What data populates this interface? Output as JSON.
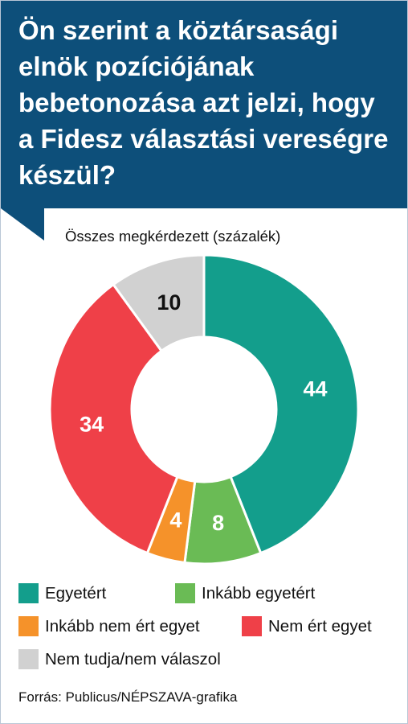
{
  "chart_data": {
    "type": "pie",
    "title": "Ön szerint a köztársasági elnök pozíciójának bebetonozása azt jelzi, hogy a Fidesz választási vereségre készül?",
    "subtitle": "Összes megkérdezett (százalék)",
    "categories": [
      "Egyetért",
      "Inkább egyetért",
      "Inkább nem ért egyet",
      "Nem ért egyet",
      "Nem tudja/nem válaszol"
    ],
    "values": [
      44,
      8,
      4,
      34,
      10
    ],
    "colors": [
      "#139e8c",
      "#6abb55",
      "#f5922a",
      "#ef4048",
      "#d1d1d1"
    ],
    "label_colors": [
      "#ffffff",
      "#ffffff",
      "#ffffff",
      "#ffffff",
      "#111111"
    ],
    "legend_position": "bottom",
    "source": "Forrás: Publicus/NÉPSZAVA-grafika"
  }
}
